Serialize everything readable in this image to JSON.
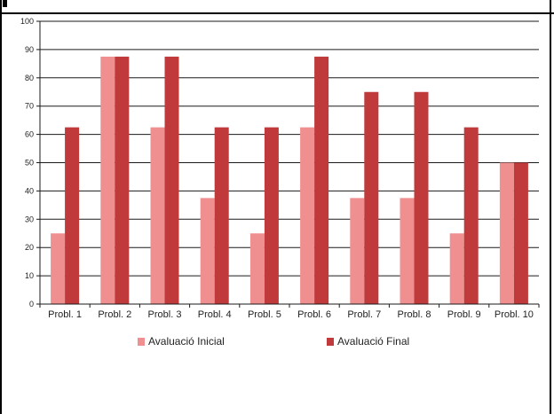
{
  "chart_data": {
    "type": "bar",
    "title": "",
    "xlabel": "",
    "ylabel": "",
    "categories": [
      "Probl. 1",
      "Probl. 2",
      "Probl. 3",
      "Probl. 4",
      "Probl. 5",
      "Probl. 6",
      "Probl. 7",
      "Probl. 8",
      "Probl. 9",
      "Probl. 10"
    ],
    "series": [
      {
        "name": "Avaluació Inicial",
        "color": "#f08f8f",
        "values": [
          25,
          87.5,
          62.5,
          37.5,
          25,
          62.5,
          37.5,
          37.5,
          25,
          50
        ]
      },
      {
        "name": "Avaluació Final",
        "color": "#c0393b",
        "values": [
          62.5,
          87.5,
          87.5,
          62.5,
          62.5,
          87.5,
          75,
          75,
          62.5,
          50
        ]
      }
    ],
    "ylim": [
      0,
      100
    ],
    "yticks": [
      0,
      10,
      20,
      30,
      40,
      50,
      60,
      70,
      80,
      90,
      100
    ],
    "grid": true,
    "legend_position": "bottom"
  }
}
